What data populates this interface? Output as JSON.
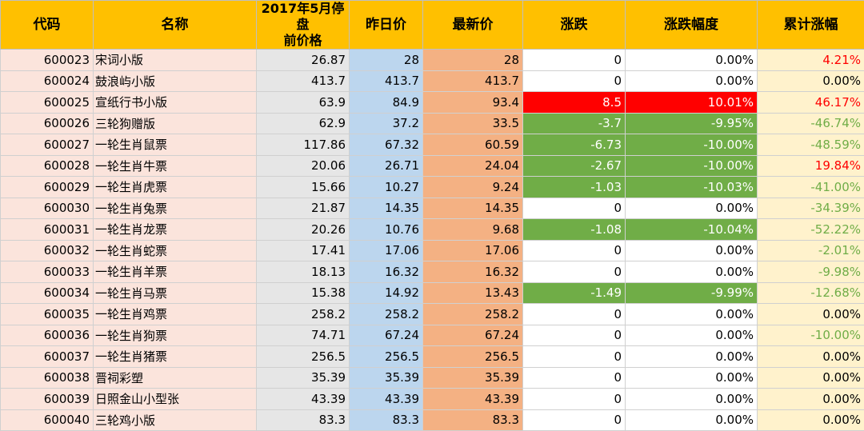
{
  "headers": {
    "code": "代码",
    "name": "名称",
    "pause_price_line1": "2017年5月停盘",
    "pause_price_line2": "前价格",
    "yesterday": "昨日价",
    "latest": "最新价",
    "change": "涨跌",
    "change_pct": "涨跌幅度",
    "cumulative": "累计涨幅"
  },
  "colors": {
    "header_bg": "#ffc000",
    "code_name_bg": "#fbe4dc",
    "pause_bg": "#e6e6e6",
    "yesterday_bg": "#bcd6ee",
    "latest_bg": "#f4b183",
    "cumulative_bg": "#fff2cc",
    "limit_up": "#ff0000",
    "limit_down": "#70ad47"
  },
  "rows": [
    {
      "code": "600023",
      "name": "宋词小版",
      "pause": "26.87",
      "yest": "28",
      "latest": "28",
      "chg": "0",
      "pct": "0.00%",
      "cum": "4.21%",
      "dir": "flat",
      "cum_dir": "pos"
    },
    {
      "code": "600024",
      "name": "鼓浪屿小版",
      "pause": "413.7",
      "yest": "413.7",
      "latest": "413.7",
      "chg": "0",
      "pct": "0.00%",
      "cum": "0.00%",
      "dir": "flat",
      "cum_dir": "zero"
    },
    {
      "code": "600025",
      "name": "宣纸行书小版",
      "pause": "63.9",
      "yest": "84.9",
      "latest": "93.4",
      "chg": "8.5",
      "pct": "10.01%",
      "cum": "46.17%",
      "dir": "up",
      "cum_dir": "pos"
    },
    {
      "code": "600026",
      "name": "三轮狗赠版",
      "pause": "62.9",
      "yest": "37.2",
      "latest": "33.5",
      "chg": "-3.7",
      "pct": "-9.95%",
      "cum": "-46.74%",
      "dir": "down",
      "cum_dir": "neg"
    },
    {
      "code": "600027",
      "name": "一轮生肖鼠票",
      "pause": "117.86",
      "yest": "67.32",
      "latest": "60.59",
      "chg": "-6.73",
      "pct": "-10.00%",
      "cum": "-48.59%",
      "dir": "down",
      "cum_dir": "neg"
    },
    {
      "code": "600028",
      "name": "一轮生肖牛票",
      "pause": "20.06",
      "yest": "26.71",
      "latest": "24.04",
      "chg": "-2.67",
      "pct": "-10.00%",
      "cum": "19.84%",
      "dir": "down",
      "cum_dir": "pos"
    },
    {
      "code": "600029",
      "name": "一轮生肖虎票",
      "pause": "15.66",
      "yest": "10.27",
      "latest": "9.24",
      "chg": "-1.03",
      "pct": "-10.03%",
      "cum": "-41.00%",
      "dir": "down",
      "cum_dir": "neg"
    },
    {
      "code": "600030",
      "name": "一轮生肖兔票",
      "pause": "21.87",
      "yest": "14.35",
      "latest": "14.35",
      "chg": "0",
      "pct": "0.00%",
      "cum": "-34.39%",
      "dir": "flat",
      "cum_dir": "neg"
    },
    {
      "code": "600031",
      "name": "一轮生肖龙票",
      "pause": "20.26",
      "yest": "10.76",
      "latest": "9.68",
      "chg": "-1.08",
      "pct": "-10.04%",
      "cum": "-52.22%",
      "dir": "down",
      "cum_dir": "neg"
    },
    {
      "code": "600032",
      "name": "一轮生肖蛇票",
      "pause": "17.41",
      "yest": "17.06",
      "latest": "17.06",
      "chg": "0",
      "pct": "0.00%",
      "cum": "-2.01%",
      "dir": "flat",
      "cum_dir": "neg"
    },
    {
      "code": "600033",
      "name": "一轮生肖羊票",
      "pause": "18.13",
      "yest": "16.32",
      "latest": "16.32",
      "chg": "0",
      "pct": "0.00%",
      "cum": "-9.98%",
      "dir": "flat",
      "cum_dir": "neg"
    },
    {
      "code": "600034",
      "name": "一轮生肖马票",
      "pause": "15.38",
      "yest": "14.92",
      "latest": "13.43",
      "chg": "-1.49",
      "pct": "-9.99%",
      "cum": "-12.68%",
      "dir": "down",
      "cum_dir": "neg"
    },
    {
      "code": "600035",
      "name": "一轮生肖鸡票",
      "pause": "258.2",
      "yest": "258.2",
      "latest": "258.2",
      "chg": "0",
      "pct": "0.00%",
      "cum": "0.00%",
      "dir": "flat",
      "cum_dir": "zero"
    },
    {
      "code": "600036",
      "name": "一轮生肖狗票",
      "pause": "74.71",
      "yest": "67.24",
      "latest": "67.24",
      "chg": "0",
      "pct": "0.00%",
      "cum": "-10.00%",
      "dir": "flat",
      "cum_dir": "neg"
    },
    {
      "code": "600037",
      "name": "一轮生肖猪票",
      "pause": "256.5",
      "yest": "256.5",
      "latest": "256.5",
      "chg": "0",
      "pct": "0.00%",
      "cum": "0.00%",
      "dir": "flat",
      "cum_dir": "zero"
    },
    {
      "code": "600038",
      "name": "晋祠彩塑",
      "pause": "35.39",
      "yest": "35.39",
      "latest": "35.39",
      "chg": "0",
      "pct": "0.00%",
      "cum": "0.00%",
      "dir": "flat",
      "cum_dir": "zero"
    },
    {
      "code": "600039",
      "name": "日照金山小型张",
      "pause": "43.39",
      "yest": "43.39",
      "latest": "43.39",
      "chg": "0",
      "pct": "0.00%",
      "cum": "0.00%",
      "dir": "flat",
      "cum_dir": "zero"
    },
    {
      "code": "600040",
      "name": "三轮鸡小版",
      "pause": "83.3",
      "yest": "83.3",
      "latest": "83.3",
      "chg": "0",
      "pct": "0.00%",
      "cum": "0.00%",
      "dir": "flat",
      "cum_dir": "zero"
    }
  ]
}
